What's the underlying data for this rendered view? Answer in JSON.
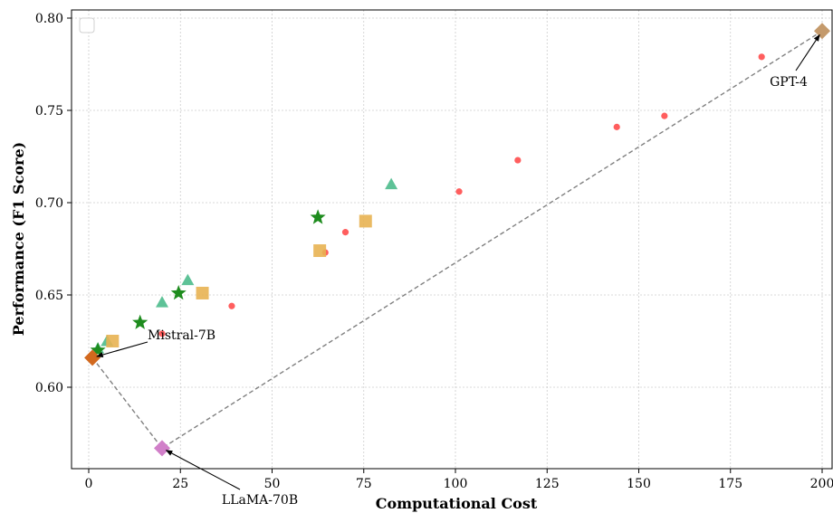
{
  "chart_data": {
    "type": "scatter",
    "xlabel": "Computational Cost",
    "ylabel": "Performance (F1 Score)",
    "xlim": [
      -5,
      202
    ],
    "ylim": [
      0.555,
      0.805
    ],
    "x_ticks": [
      0,
      25,
      50,
      75,
      100,
      125,
      150,
      175,
      200
    ],
    "x_tick_labels": [
      "0",
      "25",
      "50",
      "75",
      "100",
      "125",
      "150",
      "175",
      "200"
    ],
    "y_ticks": [
      0.6,
      0.65,
      0.7,
      0.75,
      0.8
    ],
    "y_tick_labels": [
      "0.60",
      "0.65",
      "0.70",
      "0.75",
      "0.80"
    ],
    "grid": true,
    "legend": "top-left (empty)",
    "series": [
      {
        "marker": "circle",
        "color": "#ff4d4d",
        "points": [
          [
            20,
            0.629
          ],
          [
            39,
            0.644
          ],
          [
            64.5,
            0.673
          ],
          [
            70,
            0.684
          ],
          [
            101,
            0.706
          ],
          [
            117,
            0.723
          ],
          [
            144,
            0.741
          ],
          [
            157,
            0.747
          ],
          [
            183.5,
            0.779
          ]
        ]
      },
      {
        "marker": "triangle",
        "color": "#4cbb8c",
        "points": [
          [
            2.5,
            0.621
          ],
          [
            5,
            0.625
          ],
          [
            20,
            0.646
          ],
          [
            27,
            0.658
          ],
          [
            82.5,
            0.71
          ]
        ]
      },
      {
        "marker": "star",
        "color": "#1e8c1e",
        "points": [
          [
            2.5,
            0.62
          ],
          [
            14,
            0.635
          ],
          [
            24.5,
            0.651
          ],
          [
            62.5,
            0.692
          ]
        ]
      },
      {
        "marker": "square",
        "color": "#e8b352",
        "points": [
          [
            6.5,
            0.625
          ],
          [
            31,
            0.651
          ],
          [
            63,
            0.674
          ],
          [
            75.5,
            0.69
          ]
        ]
      }
    ],
    "models": [
      {
        "name": "Mistral-7B",
        "x": 1,
        "y": 0.616,
        "color": "#d2691e"
      },
      {
        "name": "LLaMA-70B",
        "x": 20,
        "y": 0.567,
        "color": "#d17fc9"
      },
      {
        "name": "GPT-4",
        "x": 200,
        "y": 0.793,
        "color": "#c49a6c"
      }
    ],
    "frontier": [
      [
        1,
        0.616
      ],
      [
        20,
        0.567
      ],
      [
        200,
        0.793
      ]
    ]
  }
}
